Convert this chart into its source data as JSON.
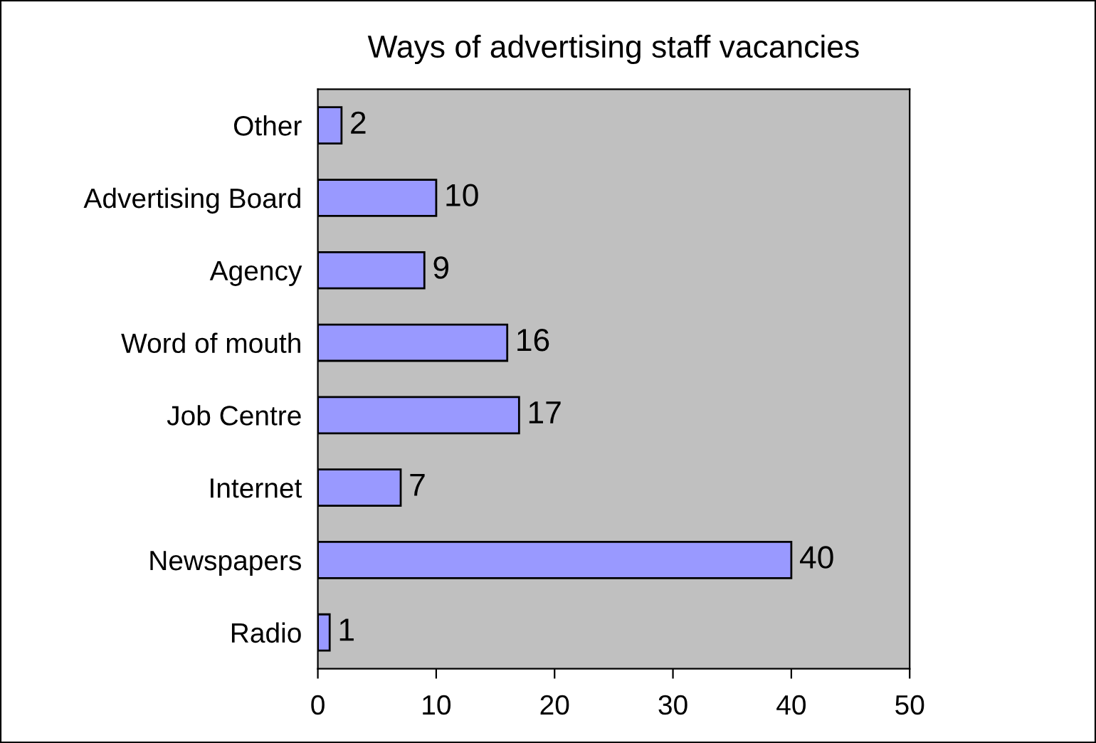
{
  "chart_data": {
    "type": "bar",
    "orientation": "horizontal",
    "title": "Ways of advertising staff vacancies",
    "categories": [
      "Other",
      "Advertising Board",
      "Agency",
      "Word of mouth",
      "Job Centre",
      "Internet",
      "Newspapers",
      "Radio"
    ],
    "values": [
      2,
      10,
      9,
      16,
      17,
      7,
      40,
      1
    ],
    "color": "#9999ff",
    "xlim": [
      0,
      50
    ],
    "xticks": [
      0,
      10,
      20,
      30,
      40,
      50
    ],
    "data_labels": true
  }
}
